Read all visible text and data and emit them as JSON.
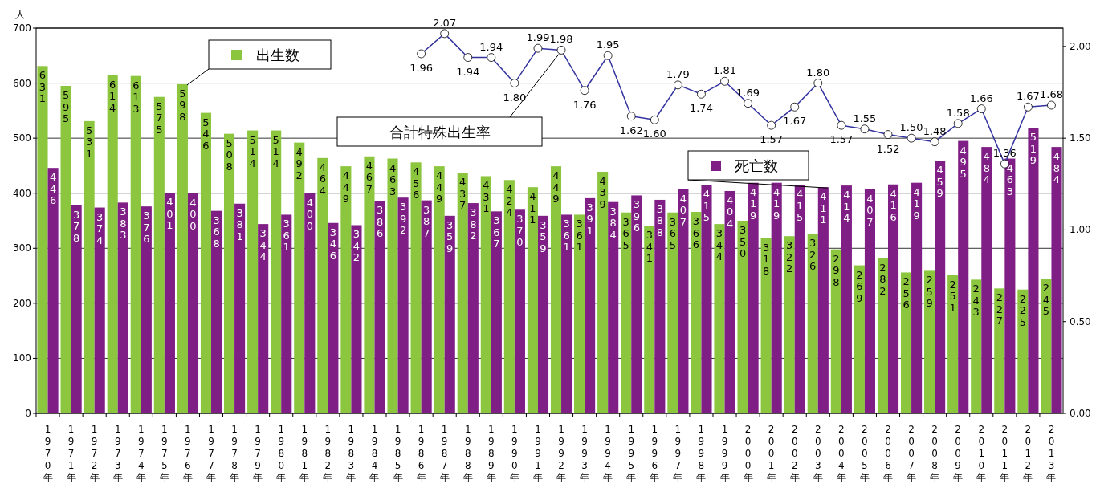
{
  "chart_data": {
    "type": "bar",
    "ylabel": "人",
    "categories": [
      "1970年",
      "1971年",
      "1972年",
      "1973年",
      "1974年",
      "1975年",
      "1976年",
      "1977年",
      "1978年",
      "1979年",
      "1980年",
      "1981年",
      "1982年",
      "1983年",
      "1984年",
      "1985年",
      "1986年",
      "1987年",
      "1988年",
      "1989年",
      "1990年",
      "1991年",
      "1992年",
      "1993年",
      "1994年",
      "1995年",
      "1996年",
      "1997年",
      "1998年",
      "1999年",
      "2000年",
      "2001年",
      "2002年",
      "2003年",
      "2004年",
      "2005年",
      "2006年",
      "2007年",
      "2008年",
      "2009年",
      "2010年",
      "2011年",
      "2012年",
      "2013年"
    ],
    "series": [
      {
        "name": "出生数",
        "color": "#8cc63f",
        "values": [
          631,
          595,
          531,
          614,
          613,
          575,
          598,
          546,
          508,
          514,
          514,
          492,
          464,
          449,
          467,
          463,
          456,
          449,
          437,
          431,
          424,
          411,
          449,
          361,
          439,
          365,
          341,
          365,
          366,
          344,
          350,
          318,
          322,
          326,
          298,
          269,
          282,
          256,
          259,
          251,
          243,
          227,
          225,
          245
        ]
      },
      {
        "name": "死亡数",
        "color": "#7f1f86",
        "values": [
          446,
          378,
          374,
          383,
          376,
          401,
          400,
          368,
          381,
          344,
          361,
          400,
          346,
          342,
          386,
          392,
          387,
          359,
          382,
          367,
          370,
          359,
          361,
          391,
          384,
          396,
          388,
          407,
          415,
          404,
          419,
          419,
          415,
          411,
          414,
          407,
          416,
          419,
          459,
          495,
          484,
          463,
          519,
          484
        ]
      },
      {
        "name": "合計特殊出生率",
        "type": "line",
        "axis": "y2",
        "color": "#3333a0",
        "marker": "circle",
        "values": [
          null,
          null,
          null,
          null,
          null,
          null,
          null,
          null,
          null,
          null,
          null,
          null,
          null,
          null,
          null,
          null,
          1.96,
          2.07,
          1.94,
          1.94,
          1.8,
          1.99,
          1.98,
          1.76,
          1.95,
          1.62,
          1.6,
          1.79,
          1.74,
          1.81,
          1.69,
          1.57,
          1.67,
          1.8,
          1.57,
          1.55,
          1.52,
          1.5,
          1.48,
          1.58,
          1.66,
          1.36,
          1.67,
          1.68
        ],
        "value_labels": [
          null,
          null,
          null,
          null,
          null,
          null,
          null,
          null,
          null,
          null,
          null,
          null,
          null,
          null,
          null,
          null,
          "1.96",
          "2.07",
          "1.94",
          "1.94",
          "1.80",
          "1.99",
          "1.98",
          "1.76",
          "1.95",
          "1.62",
          "1.60",
          "1.79",
          "1.74",
          "1.81",
          "1.69",
          "1.57",
          "1.67",
          "1.80",
          "1.57",
          "1.55",
          "1.52",
          "1.50",
          "1.48",
          "1.58",
          "1.66",
          "1.36",
          "1.67",
          "1.68"
        ]
      }
    ],
    "ylim": [
      0,
      700
    ],
    "yticks": [
      0,
      100,
      200,
      300,
      400,
      500,
      600,
      700
    ],
    "y2lim": [
      0,
      2.1
    ],
    "y2ticks": [
      {
        "value": 0,
        "label": "0.00"
      },
      {
        "value": 0.5,
        "label": "0.50"
      },
      {
        "value": 1,
        "label": "1.00"
      },
      {
        "value": 1.5,
        "label": "1.50"
      },
      {
        "value": 2,
        "label": "2.00"
      }
    ],
    "grid": "y",
    "data_labels": true,
    "legend": "top"
  }
}
